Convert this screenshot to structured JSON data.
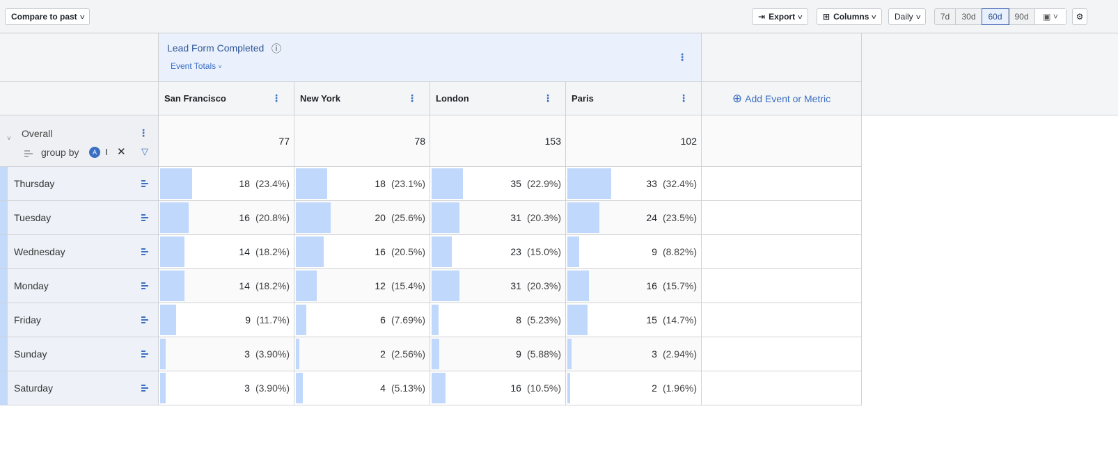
{
  "toolbar": {
    "compare": "Compare to past",
    "export": "Export",
    "columns": "Columns",
    "interval": "Daily",
    "ranges": [
      "7d",
      "30d",
      "60d",
      "90d"
    ],
    "active_range": "60d"
  },
  "metric": {
    "title": "Lead Form Completed",
    "subtitle": "Event Totals"
  },
  "add_label": "Add Event or Metric",
  "columns": [
    "San Francisco",
    "New York",
    "London",
    "Paris"
  ],
  "overall": {
    "label": "Overall",
    "group_by": "group by",
    "chip": "I",
    "values": [
      "77",
      "78",
      "153",
      "102"
    ]
  },
  "rows": [
    {
      "label": "Thursday",
      "cells": [
        [
          "18",
          "(23.4%)",
          23.4
        ],
        [
          "18",
          "(23.1%)",
          23.1
        ],
        [
          "35",
          "(22.9%)",
          22.9
        ],
        [
          "33",
          "(32.4%)",
          32.4
        ]
      ]
    },
    {
      "label": "Tuesday",
      "cells": [
        [
          "16",
          "(20.8%)",
          20.8
        ],
        [
          "20",
          "(25.6%)",
          25.6
        ],
        [
          "31",
          "(20.3%)",
          20.3
        ],
        [
          "24",
          "(23.5%)",
          23.5
        ]
      ]
    },
    {
      "label": "Wednesday",
      "cells": [
        [
          "14",
          "(18.2%)",
          18.2
        ],
        [
          "16",
          "(20.5%)",
          20.5
        ],
        [
          "23",
          "(15.0%)",
          15.0
        ],
        [
          "9",
          "(8.82%)",
          8.82
        ]
      ]
    },
    {
      "label": "Monday",
      "cells": [
        [
          "14",
          "(18.2%)",
          18.2
        ],
        [
          "12",
          "(15.4%)",
          15.4
        ],
        [
          "31",
          "(20.3%)",
          20.3
        ],
        [
          "16",
          "(15.7%)",
          15.7
        ]
      ]
    },
    {
      "label": "Friday",
      "cells": [
        [
          "9",
          "(11.7%)",
          11.7
        ],
        [
          "6",
          "(7.69%)",
          7.69
        ],
        [
          "8",
          "(5.23%)",
          5.23
        ],
        [
          "15",
          "(14.7%)",
          14.7
        ]
      ]
    },
    {
      "label": "Sunday",
      "cells": [
        [
          "3",
          "(3.90%)",
          3.9
        ],
        [
          "2",
          "(2.56%)",
          2.56
        ],
        [
          "9",
          "(5.88%)",
          5.88
        ],
        [
          "3",
          "(2.94%)",
          2.94
        ]
      ]
    },
    {
      "label": "Saturday",
      "cells": [
        [
          "3",
          "(3.90%)",
          3.9
        ],
        [
          "4",
          "(5.13%)",
          5.13
        ],
        [
          "16",
          "(10.5%)",
          10.5
        ],
        [
          "2",
          "(1.96%)",
          1.96
        ]
      ]
    }
  ],
  "colors": {
    "accent": "#3b6fc4",
    "bar": "#c0d8fb"
  }
}
